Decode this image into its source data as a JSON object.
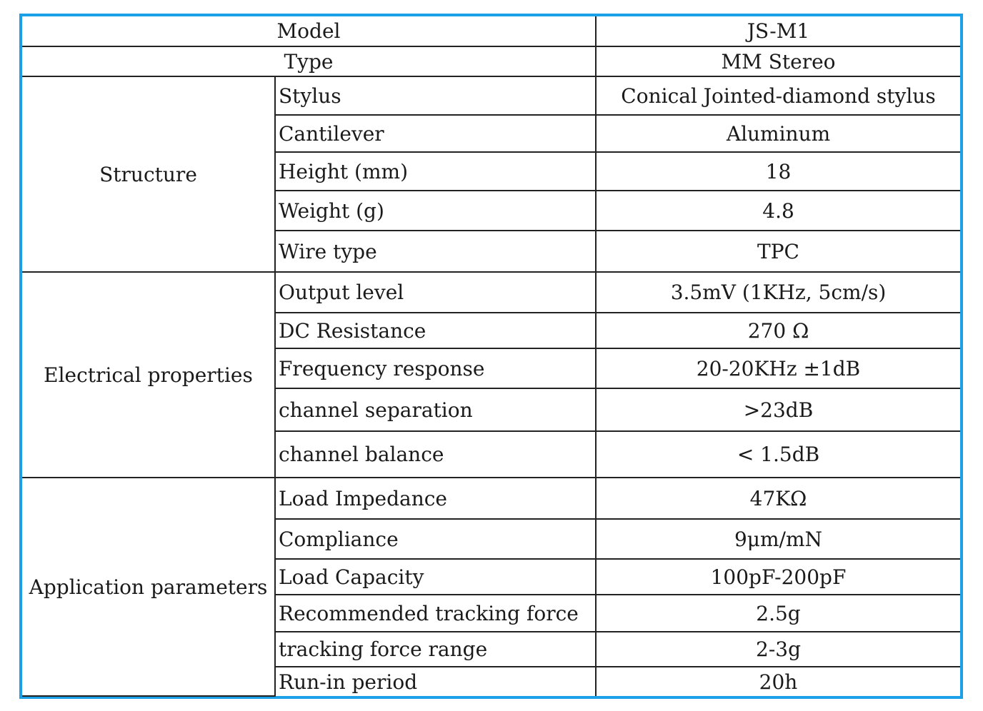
{
  "header": {
    "model_label": "Model",
    "model_value": "JS-M1",
    "type_label": "Type",
    "type_value": "MM Stereo"
  },
  "groups": [
    {
      "title": "Structure",
      "rows": [
        {
          "param": "Stylus",
          "value": "Conical Jointed-diamond stylus"
        },
        {
          "param": "Cantilever",
          "value": "Aluminum"
        },
        {
          "param": "Height (mm)",
          "value": "18"
        },
        {
          "param": "Weight (g)",
          "value": "4.8"
        },
        {
          "param": "Wire type",
          "value": "TPC"
        }
      ]
    },
    {
      "title": "Electrical properties",
      "rows": [
        {
          "param": "Output level",
          "value": "3.5mV (1KHz, 5cm/s)"
        },
        {
          "param": "DC Resistance",
          "value": "270 Ω"
        },
        {
          "param": "Frequency response",
          "value": "20-20KHz ±1dB"
        },
        {
          "param": "channel separation",
          "value": ">23dB"
        },
        {
          "param": "channel balance",
          "value": "< 1.5dB"
        }
      ]
    },
    {
      "title": "Application parameters",
      "rows": [
        {
          "param": "Load Impedance",
          "value": "47KΩ"
        },
        {
          "param": "Compliance",
          "value": "9μm/mN"
        },
        {
          "param": "Load Capacity",
          "value": "100pF-200pF"
        },
        {
          "param": "Recommended tracking force",
          "value": "2.5g"
        },
        {
          "param": "tracking force range",
          "value": "2-3g"
        },
        {
          "param": "Run-in period",
          "value": "20h"
        }
      ]
    }
  ]
}
